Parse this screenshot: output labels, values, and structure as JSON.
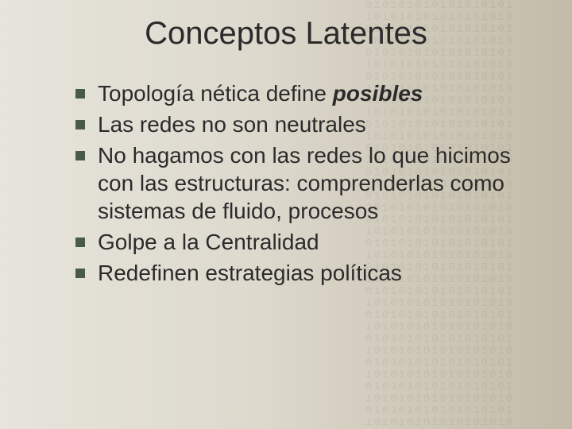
{
  "slide": {
    "title": "Conceptos Latentes",
    "title_fontsize": 40,
    "title_color": "#2b2b2b",
    "background_gradient": [
      "#e6e4db",
      "#ddd9cd",
      "#d0cabb",
      "#c2bba8"
    ],
    "bullet_marker_color": "#4a5a4a",
    "bullet_marker_size": 12,
    "body_fontsize": 28,
    "body_color": "#2b2b2b",
    "font_family": "Verdana",
    "bullets": [
      {
        "text_prefix": "Topología nética define ",
        "text_emphasis": "posibles",
        "text_suffix": ""
      },
      {
        "text_prefix": "Las redes no son neutrales",
        "text_emphasis": "",
        "text_suffix": ""
      },
      {
        "text_prefix": "No hagamos con las redes lo que hicimos con las estructuras: comprenderlas como sistemas de fluido, procesos",
        "text_emphasis": "",
        "text_suffix": ""
      },
      {
        "text_prefix": "Golpe a la Centralidad",
        "text_emphasis": "",
        "text_suffix": ""
      },
      {
        "text_prefix": "Redefinen estrategias políticas",
        "text_emphasis": "",
        "text_suffix": ""
      }
    ],
    "binary_overlay_opacity": 0.08
  }
}
